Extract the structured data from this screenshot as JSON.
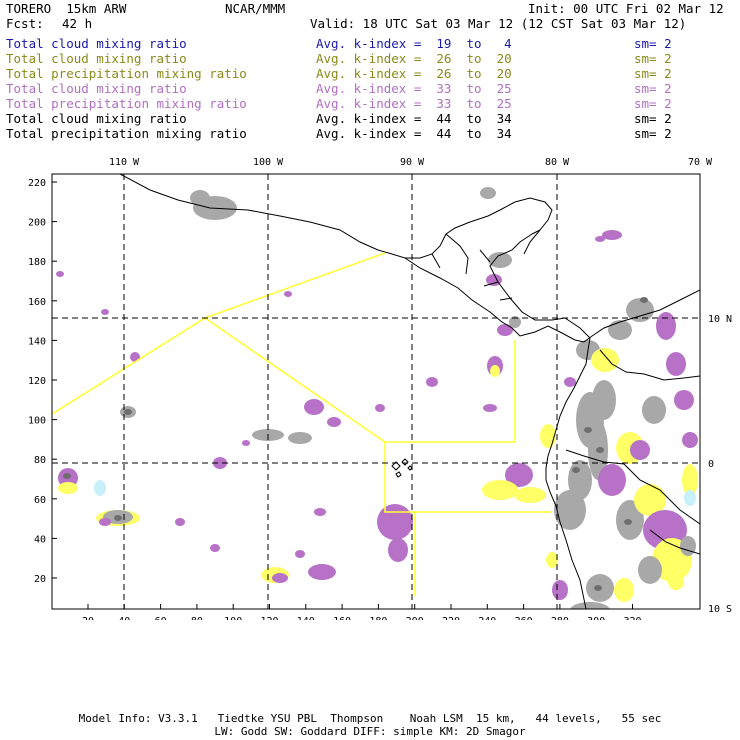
{
  "header": {
    "model": "TORERO  15km ARW",
    "center": "NCAR/MMM",
    "init": "Init: 00 UTC Fri 02 Mar 12",
    "fcst_label": "Fcst:",
    "fcst_value": "42 h",
    "valid": "Valid: 18 UTC Sat 03 Mar 12 (12 CST Sat 03 Mar 12)"
  },
  "legend": [
    {
      "field": "Total cloud mixing ratio",
      "kindex": "Avg. k-index =  19  to   4",
      "sm": "sm= 2",
      "color": "#1a1aa8"
    },
    {
      "field": "Total cloud mixing ratio",
      "kindex": "Avg. k-index =  26  to  20",
      "sm": "sm= 2",
      "color": "#8a8a1a"
    },
    {
      "field": "Total precipitation mixing ratio",
      "kindex": "Avg. k-index =  26  to  20",
      "sm": "sm= 2",
      "color": "#8a8a1a"
    },
    {
      "field": "Total cloud mixing ratio",
      "kindex": "Avg. k-index =  33  to  25",
      "sm": "sm= 2",
      "color": "#b070c0"
    },
    {
      "field": "Total precipitation mixing ratio",
      "kindex": "Avg. k-index =  33  to  25",
      "sm": "sm= 2",
      "color": "#b070c0"
    },
    {
      "field": "Total cloud mixing ratio",
      "kindex": "Avg. k-index =  44  to  34",
      "sm": "sm= 2",
      "color": "#000000"
    },
    {
      "field": "Total precipitation mixing ratio",
      "kindex": "Avg. k-index =  44  to  34",
      "sm": "sm= 2",
      "color": "#000000"
    }
  ],
  "map": {
    "lon_labels": [
      "110 W",
      "100 W",
      "90 W",
      "80 W",
      "70 W"
    ],
    "lat_labels": [
      "10 N",
      "0",
      "10 S"
    ],
    "y_ticks": [
      "220",
      "200",
      "180",
      "160",
      "140",
      "120",
      "100",
      "80",
      "60",
      "40",
      "20"
    ],
    "x_ticks": [
      "20",
      "40",
      "60",
      "80",
      "100",
      "120",
      "140",
      "160",
      "180",
      "200",
      "220",
      "240",
      "260",
      "280",
      "300",
      "320"
    ],
    "colors": {
      "frame": "#000000",
      "coast": "#000000",
      "boxes": "#ffff33",
      "gray": "#a8a8a8",
      "gray_dark": "#6e6e6e",
      "purple": "#b772c8",
      "yellow": "#ffff66",
      "cyan": "#c8f0f8"
    }
  },
  "footer": {
    "line1": "Model Info: V3.3.1   Tiedtke YSU PBL  Thompson    Noah LSM  15 km,   44 levels,   55 sec",
    "line2": "LW: Godd SW: Goddard DIFF: simple KM: 2D Smagor"
  }
}
